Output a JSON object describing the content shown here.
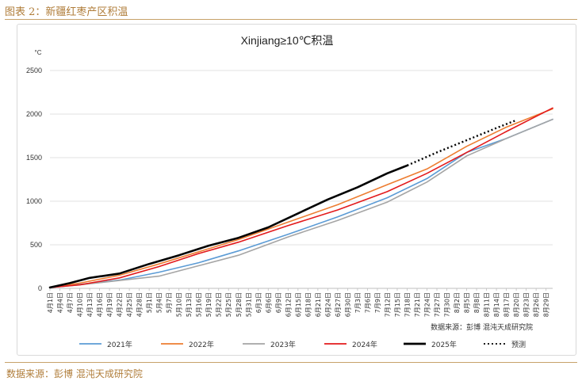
{
  "figure_label": "图表 2：新疆红枣产区积温",
  "footer_source": "数据来源：彭博 混沌天成研究院",
  "colors": {
    "s2021": "#5b9bd5",
    "s2022": "#ed7d31",
    "s2023": "#a5a5a5",
    "s2024": "#e31a1c",
    "s2025": "#000000",
    "forecast": "#000000",
    "accent": "#b07d3a"
  },
  "chart_data": {
    "type": "line",
    "title": "Xinjiang≥10℃积温",
    "ylabel": "°C",
    "ylim": [
      0,
      2500
    ],
    "yticks": [
      0,
      500,
      1000,
      1500,
      2000,
      2500
    ],
    "x_start": "4月1日",
    "x_end": "8月31日",
    "x_tick_labels": [
      "4月1日",
      "4月4日",
      "4月7日",
      "4月10日",
      "4月13日",
      "4月16日",
      "4月19日",
      "4月22日",
      "4月25日",
      "4月28日",
      "5月1日",
      "5月4日",
      "5月7日",
      "5月10日",
      "5月13日",
      "5月16日",
      "5月19日",
      "5月22日",
      "5月25日",
      "5月28日",
      "5月31日",
      "6月3日",
      "6月6日",
      "6月9日",
      "6月12日",
      "6月15日",
      "6月18日",
      "6月21日",
      "6月24日",
      "6月27日",
      "6月30日",
      "7月3日",
      "7月6日",
      "7月9日",
      "7月12日",
      "7月15日",
      "7月18日",
      "7月21日",
      "7月24日",
      "7月27日",
      "7月30日",
      "8月2日",
      "8月5日",
      "8月8日",
      "8月11日",
      "8月14日",
      "8月17日",
      "8月20日",
      "8月23日",
      "8月26日",
      "8月29日"
    ],
    "annotation": "数据来源：彭博  混沌天成研究院",
    "legend_position": "bottom",
    "grid": "horizontal",
    "series": [
      {
        "name": "2021年",
        "color_key": "s2021",
        "style": "solid",
        "x": [
          "4月1日",
          "4月10日",
          "4月22日",
          "5月4日",
          "5月16日",
          "5月28日",
          "6月12日",
          "6月27日",
          "7月12日",
          "7月24日",
          "8月5日",
          "8月17日",
          "8月31日"
        ],
        "values": [
          10,
          45,
          95,
          185,
          295,
          430,
          620,
          820,
          1040,
          1260,
          1560,
          1720,
          1940
        ]
      },
      {
        "name": "2022年",
        "color_key": "s2022",
        "style": "solid",
        "x": [
          "4月1日",
          "4月10日",
          "4月22日",
          "5月4日",
          "5月16日",
          "5月28日",
          "6月12日",
          "6月27日",
          "7月12日",
          "7月24日",
          "8月5日",
          "8月17日",
          "8月31日"
        ],
        "values": [
          10,
          60,
          150,
          280,
          420,
          560,
          760,
          960,
          1190,
          1370,
          1630,
          1850,
          2060
        ]
      },
      {
        "name": "2023年",
        "color_key": "s2023",
        "style": "solid",
        "x": [
          "4月1日",
          "4月10日",
          "4月22日",
          "5月4日",
          "5月16日",
          "5月28日",
          "6月12日",
          "6月27日",
          "7月12日",
          "7月24日",
          "8月5日",
          "8月17日",
          "8月31日"
        ],
        "values": [
          10,
          40,
          90,
          140,
          260,
          380,
          590,
          780,
          990,
          1220,
          1520,
          1720,
          1940
        ]
      },
      {
        "name": "2024年",
        "color_key": "s2024",
        "style": "solid",
        "x": [
          "4月1日",
          "4月10日",
          "4月22日",
          "5月4日",
          "5月16日",
          "5月28日",
          "6月12日",
          "6月27日",
          "7月12日",
          "7月24日",
          "8月5日",
          "8月17日",
          "8月31日"
        ],
        "values": [
          10,
          40,
          120,
          250,
          400,
          530,
          720,
          900,
          1110,
          1320,
          1560,
          1800,
          2070
        ]
      },
      {
        "name": "2025年",
        "color_key": "s2025",
        "style": "solid",
        "x": [
          "4月1日",
          "4月7日",
          "4月13日",
          "4月22日",
          "5月1日",
          "5月10日",
          "5月19日",
          "5月28日",
          "6月6日",
          "6月15日",
          "6月24日",
          "7月3日",
          "7月12日",
          "7月18日"
        ],
        "values": [
          10,
          60,
          120,
          170,
          280,
          380,
          490,
          580,
          700,
          860,
          1020,
          1160,
          1320,
          1410
        ]
      },
      {
        "name": "预测",
        "color_key": "forecast",
        "style": "dotted",
        "x": [
          "7月18日",
          "7月27日",
          "8月5日",
          "8月14日",
          "8月20日"
        ],
        "values": [
          1410,
          1560,
          1700,
          1840,
          1930
        ]
      }
    ]
  }
}
